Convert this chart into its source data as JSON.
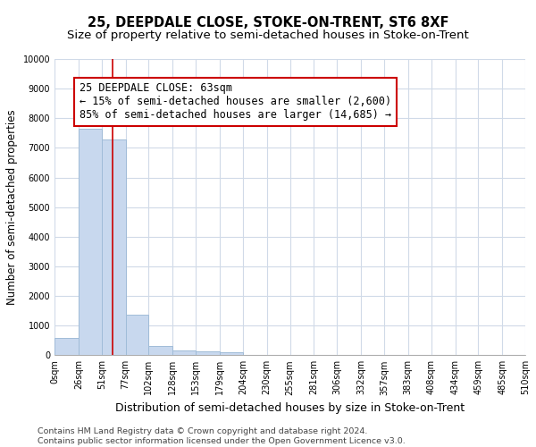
{
  "title": "25, DEEPDALE CLOSE, STOKE-ON-TRENT, ST6 8XF",
  "subtitle": "Size of property relative to semi-detached houses in Stoke-on-Trent",
  "xlabel": "Distribution of semi-detached houses by size in Stoke-on-Trent",
  "ylabel": "Number of semi-detached properties",
  "footer": "Contains HM Land Registry data © Crown copyright and database right 2024.\nContains public sector information licensed under the Open Government Licence v3.0.",
  "bin_edges": [
    0,
    26,
    51,
    77,
    102,
    128,
    153,
    179,
    204,
    230,
    255,
    281,
    306,
    332,
    357,
    383,
    408,
    434,
    459,
    485,
    510
  ],
  "bar_heights": [
    580,
    7650,
    7280,
    1370,
    320,
    165,
    120,
    95,
    0,
    0,
    0,
    0,
    0,
    0,
    0,
    0,
    0,
    0,
    0,
    0
  ],
  "bar_color": "#c8d8ee",
  "bar_edge_color": "#a0bcd8",
  "property_size": 63,
  "vline_color": "#cc0000",
  "annotation_line1": "25 DEEPDALE CLOSE: 63sqm",
  "annotation_line2": "← 15% of semi-detached houses are smaller (2,600)",
  "annotation_line3": "85% of semi-detached houses are larger (14,685) →",
  "annotation_box_color": "#ffffff",
  "annotation_box_edge_color": "#cc0000",
  "ylim": [
    0,
    10000
  ],
  "yticks": [
    0,
    1000,
    2000,
    3000,
    4000,
    5000,
    6000,
    7000,
    8000,
    9000,
    10000
  ],
  "bg_color": "#ffffff",
  "plot_bg_color": "#ffffff",
  "grid_color": "#d0dae8",
  "title_fontsize": 10.5,
  "subtitle_fontsize": 9.5,
  "xlabel_fontsize": 9,
  "ylabel_fontsize": 8.5,
  "tick_fontsize": 7,
  "annotation_fontsize": 8.5,
  "footer_fontsize": 6.8
}
